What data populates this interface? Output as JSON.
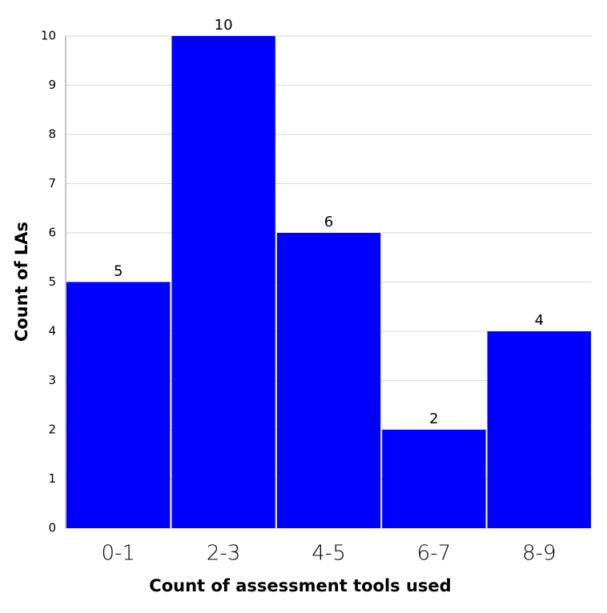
{
  "chart_data": {
    "type": "bar",
    "x_label": "Count of assessment tools used",
    "y_label": "Count of LAs",
    "categories": [
      "0-1",
      "2-3",
      "4-5",
      "6-7",
      "8-9"
    ],
    "values": [
      5,
      10,
      6,
      2,
      4
    ],
    "color": "#0000ff",
    "ylim": [
      0,
      10
    ],
    "yticks": [
      0,
      1,
      2,
      3,
      4,
      5,
      6,
      7,
      8,
      9,
      10
    ],
    "grid": true
  }
}
